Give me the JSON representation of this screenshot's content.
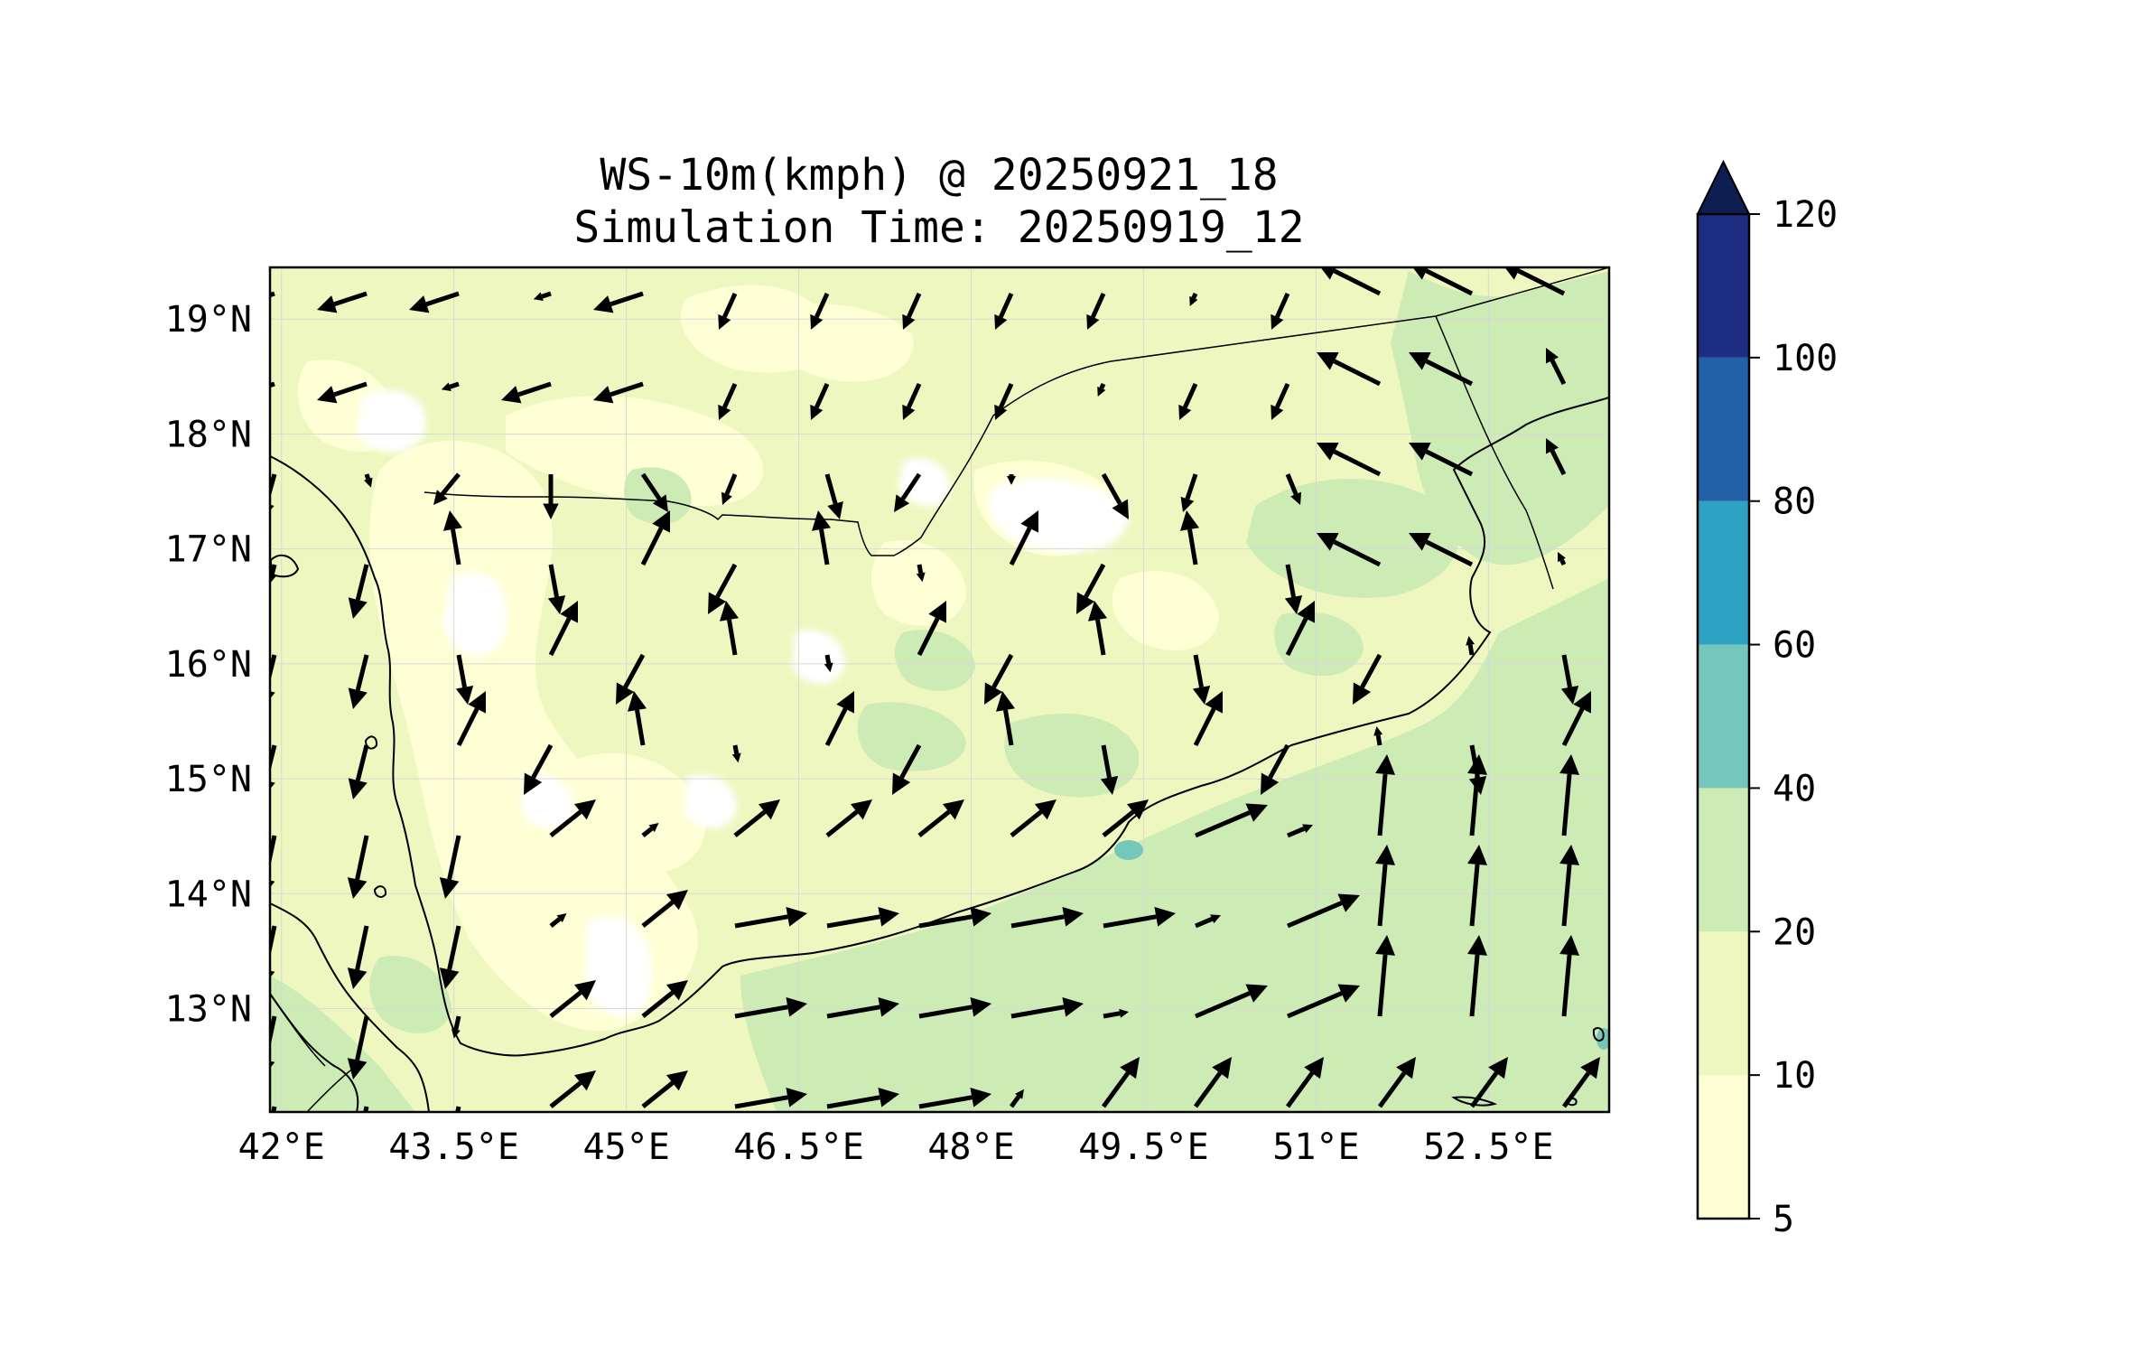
{
  "title": {
    "line1": "WS-10m(kmph) @ 20250921_18",
    "line2": "Simulation Time: 20250919_12"
  },
  "map": {
    "lon_range": [
      41.9,
      53.55
    ],
    "lat_range": [
      12.1,
      19.45
    ],
    "lon_ticks": [
      {
        "value": 42.0,
        "label": "42°E"
      },
      {
        "value": 43.5,
        "label": "43.5°E"
      },
      {
        "value": 45.0,
        "label": "45°E"
      },
      {
        "value": 46.5,
        "label": "46.5°E"
      },
      {
        "value": 48.0,
        "label": "48°E"
      },
      {
        "value": 49.5,
        "label": "49.5°E"
      },
      {
        "value": 51.0,
        "label": "51°E"
      },
      {
        "value": 52.5,
        "label": "52.5°E"
      }
    ],
    "lat_ticks": [
      {
        "value": 19.0,
        "label": "19°N"
      },
      {
        "value": 18.0,
        "label": "18°N"
      },
      {
        "value": 17.0,
        "label": "17°N"
      },
      {
        "value": 16.0,
        "label": "16°N"
      },
      {
        "value": 15.0,
        "label": "15°N"
      },
      {
        "value": 14.0,
        "label": "14°N"
      },
      {
        "value": 13.0,
        "label": "13°N"
      }
    ],
    "gridlines": true,
    "vector_field": "10m wind arrows, predominantly from the west/southwest over the Gulf of Aden and from the northeast over the interior"
  },
  "colorbar": {
    "extend": "max",
    "levels": [
      {
        "from": 5,
        "to": 10,
        "color": "#ffffd6"
      },
      {
        "from": 10,
        "to": 20,
        "color": "#eef7bf"
      },
      {
        "from": 20,
        "to": 40,
        "color": "#cdebb5"
      },
      {
        "from": 40,
        "to": 60,
        "color": "#76c7bb"
      },
      {
        "from": 60,
        "to": 80,
        "color": "#2ea2c3"
      },
      {
        "from": 80,
        "to": 100,
        "color": "#2260a8"
      },
      {
        "from": 100,
        "to": 120,
        "color": "#1d2e82"
      }
    ],
    "extend_color": "#0e1e50",
    "tick_labels": [
      "5",
      "10",
      "20",
      "40",
      "60",
      "80",
      "100",
      "120"
    ]
  }
}
